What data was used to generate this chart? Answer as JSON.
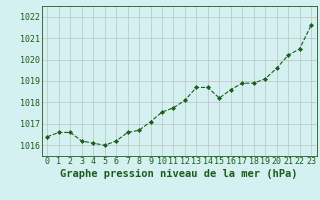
{
  "x": [
    0,
    1,
    2,
    3,
    4,
    5,
    6,
    7,
    8,
    9,
    10,
    11,
    12,
    13,
    14,
    15,
    16,
    17,
    18,
    19,
    20,
    21,
    22,
    23
  ],
  "y": [
    1016.4,
    1016.6,
    1016.6,
    1016.2,
    1016.1,
    1016.0,
    1016.2,
    1016.6,
    1016.7,
    1017.1,
    1017.55,
    1017.75,
    1018.1,
    1018.7,
    1018.7,
    1018.2,
    1018.6,
    1018.9,
    1018.9,
    1019.1,
    1019.6,
    1020.2,
    1020.5,
    1021.6
  ],
  "ylim": [
    1015.5,
    1022.5
  ],
  "yticks": [
    1016,
    1017,
    1018,
    1019,
    1020,
    1021,
    1022
  ],
  "xticks": [
    0,
    1,
    2,
    3,
    4,
    5,
    6,
    7,
    8,
    9,
    10,
    11,
    12,
    13,
    14,
    15,
    16,
    17,
    18,
    19,
    20,
    21,
    22,
    23
  ],
  "line_color": "#1a5c1a",
  "marker": "D",
  "marker_size": 2.0,
  "bg_color": "#d4f0f0",
  "grid_color": "#b8b8b8",
  "xlabel": "Graphe pression niveau de la mer (hPa)",
  "xlabel_color": "#1a5c1a",
  "tick_color": "#1a5c1a",
  "label_fontsize": 6.0,
  "xlabel_fontsize": 7.5,
  "xlim": [
    -0.5,
    23.5
  ]
}
